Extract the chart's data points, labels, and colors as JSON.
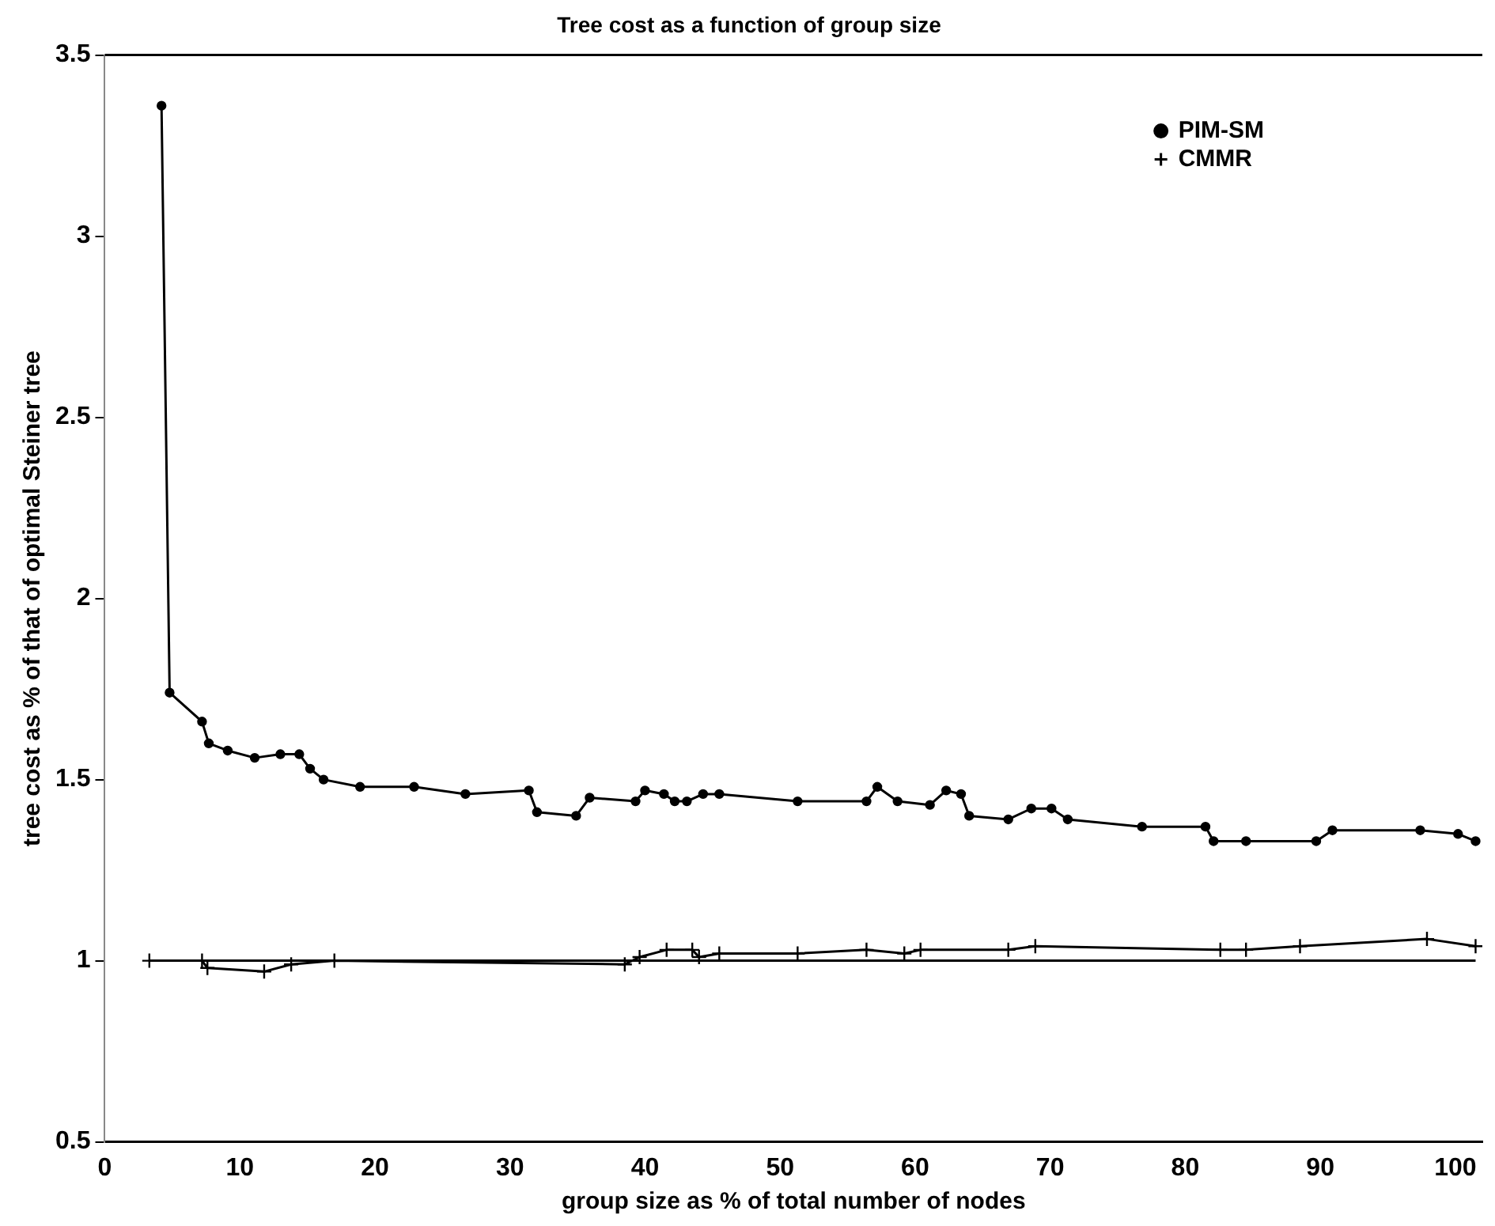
{
  "chart_data": {
    "type": "line",
    "title": "Tree cost as a function of group size",
    "xlabel": "group size as % of total number of nodes",
    "ylabel": "tree cost as % of that of optimal Steiner tree",
    "xlim": [
      0,
      102
    ],
    "xticks": [
      0,
      10,
      20,
      30,
      40,
      50,
      60,
      70,
      80,
      90,
      100
    ],
    "ylim": [
      0.5,
      3.5
    ],
    "yticks": [
      0.5,
      1,
      1.5,
      2,
      2.5,
      3,
      3.5
    ],
    "grid": false,
    "legend": "top right",
    "series": [
      {
        "name": "PIM-SM",
        "color": "#000000",
        "marker": "circle",
        "x": [
          4.2,
          4.8,
          7.2,
          7.7,
          9.1,
          11.1,
          13.0,
          14.4,
          15.2,
          16.2,
          18.9,
          22.9,
          26.7,
          31.4,
          32.0,
          34.9,
          35.9,
          39.3,
          40.0,
          41.4,
          42.2,
          43.1,
          44.3,
          45.5,
          51.3,
          56.4,
          57.2,
          58.7,
          61.1,
          62.3,
          63.4,
          64.0,
          66.9,
          68.6,
          70.1,
          71.3,
          76.8,
          81.5,
          82.1,
          84.5,
          89.7,
          90.9,
          97.4,
          100.2,
          101.5
        ],
        "values": [
          3.36,
          1.74,
          1.66,
          1.6,
          1.58,
          1.56,
          1.57,
          1.57,
          1.53,
          1.5,
          1.48,
          1.48,
          1.46,
          1.47,
          1.41,
          1.4,
          1.45,
          1.44,
          1.47,
          1.46,
          1.44,
          1.44,
          1.46,
          1.46,
          1.44,
          1.44,
          1.48,
          1.44,
          1.43,
          1.47,
          1.46,
          1.4,
          1.39,
          1.42,
          1.42,
          1.39,
          1.37,
          1.37,
          1.33,
          1.33,
          1.33,
          1.36,
          1.36,
          1.35,
          1.33
        ]
      },
      {
        "name": "CMMR",
        "color": "#000000",
        "marker": "cross",
        "x": [
          3.3,
          7.2,
          7.6,
          11.8,
          13.8,
          17.0,
          38.5,
          39.6,
          41.6,
          43.5,
          44.0,
          45.5,
          51.3,
          56.4,
          59.2,
          60.4,
          66.9,
          68.9,
          82.6,
          84.5,
          88.5,
          97.9,
          101.5
        ],
        "values": [
          1.0,
          1.0,
          0.98,
          0.97,
          0.99,
          1.0,
          0.99,
          1.01,
          1.03,
          1.03,
          1.01,
          1.02,
          1.02,
          1.03,
          1.02,
          1.03,
          1.03,
          1.04,
          1.03,
          1.03,
          1.04,
          1.06,
          1.04
        ]
      },
      {
        "color": "#000000",
        "marker": "none",
        "x": [
          3.3,
          101.5
        ],
        "values": [
          1.0,
          1.0
        ]
      }
    ]
  }
}
